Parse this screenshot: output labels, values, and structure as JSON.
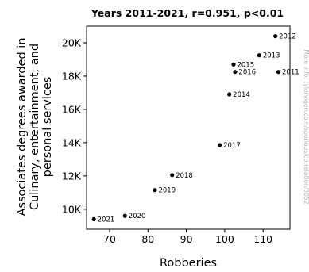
{
  "chart_data": {
    "type": "scatter",
    "title": "Years 2011-2021, r=0.951, p<0.01",
    "xlabel": "Robberies",
    "ylabel_lines": [
      "Associates degrees awarded in",
      "Culinary, entertainment, and",
      "personal services"
    ],
    "side_note": "More info: tylervigen.com/spurious/correlation/3052",
    "xlim": [
      64,
      117
    ],
    "ylim": [
      8800,
      21000
    ],
    "x_ticks": [
      70,
      80,
      90,
      100,
      110
    ],
    "y_ticks": [
      10000,
      12000,
      14000,
      16000,
      18000,
      20000
    ],
    "y_tick_labels": [
      "10K",
      "12K",
      "14K",
      "16K",
      "18K",
      "20K"
    ],
    "grid": false,
    "points": [
      {
        "label": "2011",
        "x": 114.0,
        "y": 18250
      },
      {
        "label": "2012",
        "x": 113.2,
        "y": 20400
      },
      {
        "label": "2013",
        "x": 109.0,
        "y": 19250
      },
      {
        "label": "2014",
        "x": 101.2,
        "y": 16900
      },
      {
        "label": "2015",
        "x": 102.3,
        "y": 18700
      },
      {
        "label": "2016",
        "x": 102.7,
        "y": 18250
      },
      {
        "label": "2017",
        "x": 98.7,
        "y": 13850
      },
      {
        "label": "2018",
        "x": 86.3,
        "y": 12050
      },
      {
        "label": "2019",
        "x": 81.8,
        "y": 11150
      },
      {
        "label": "2020",
        "x": 74.0,
        "y": 9600
      },
      {
        "label": "2021",
        "x": 65.9,
        "y": 9400
      }
    ],
    "marker_color": "#000000"
  }
}
